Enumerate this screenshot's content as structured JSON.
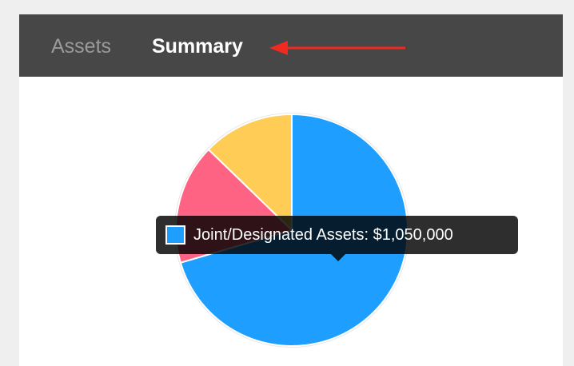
{
  "tabs": [
    "Assets",
    "Summary"
  ],
  "active_tab": 1,
  "chart_data": {
    "type": "pie",
    "categories": [
      "Joint/Designated Assets",
      null,
      null
    ],
    "values": [
      1050000,
      250000,
      190000
    ],
    "value_labels": [
      "$1,050,000",
      null,
      null
    ],
    "colors": [
      "#1e9fff",
      "#ff6384",
      "#ffcd56"
    ],
    "tooltip_index": 0
  }
}
